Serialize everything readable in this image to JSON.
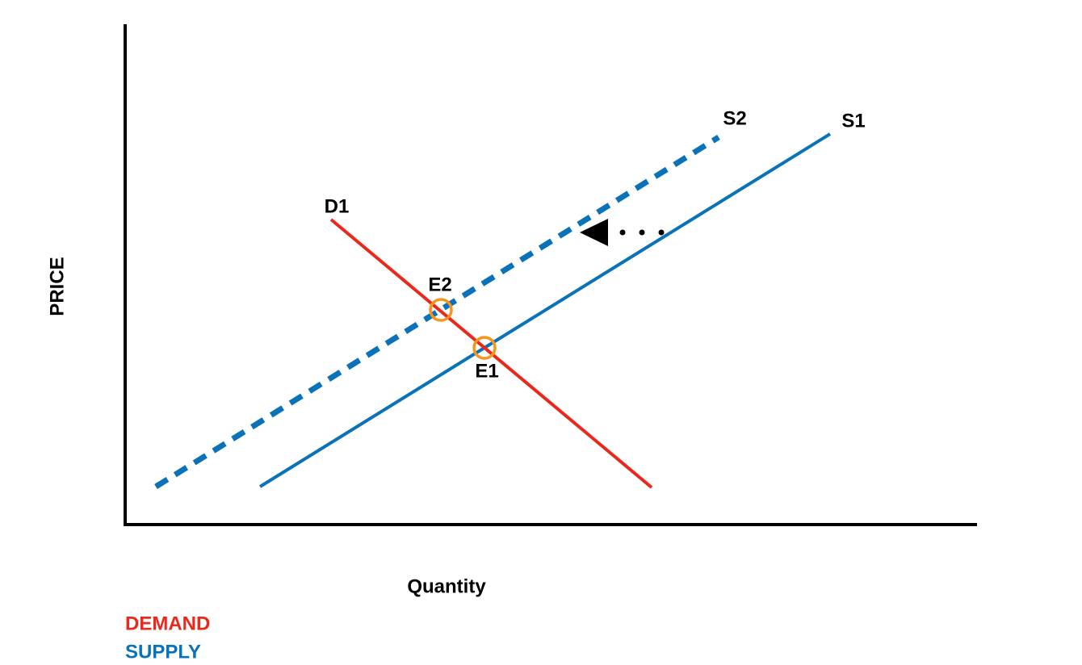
{
  "axes": {
    "y_label": "PRICE",
    "x_label": "Quantity"
  },
  "curves": [
    {
      "label": "D1"
    },
    {
      "label": "S1"
    },
    {
      "label": "S2"
    }
  ],
  "points": [
    {
      "label": "E1"
    },
    {
      "label": "E2"
    }
  ],
  "legend": [
    "DEMAND",
    "SUPPLY"
  ]
}
